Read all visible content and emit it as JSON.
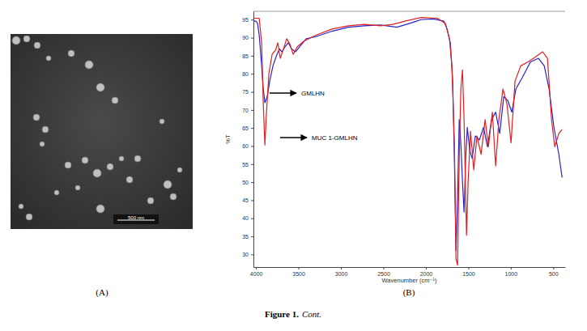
{
  "chart_data": {
    "type": "line",
    "xlabel": "Wavenumber (cm⁻¹)",
    "ylabel": "%T",
    "xlim": [
      4030,
      360
    ],
    "ylim": [
      26.5,
      97.3
    ],
    "xticks": [
      4000,
      3500,
      3000,
      2500,
      2000,
      1500,
      1000,
      500
    ],
    "yticks": [
      30,
      35,
      40,
      45,
      50,
      55,
      60,
      65,
      70,
      75,
      80,
      85,
      90,
      95
    ],
    "grid": false,
    "annotations": [
      "GMLHN",
      "MUC 1-GMLHN"
    ],
    "series": [
      {
        "name": "GMLHN",
        "color": "#2424cc",
        "x": [
          4029,
          4000,
          3981,
          3962,
          3933,
          3914,
          3895,
          3867,
          3838,
          3800,
          3762,
          3724,
          3695,
          3657,
          3619,
          3581,
          3533,
          3485,
          3409,
          3295,
          3104,
          2913,
          2723,
          2532,
          2341,
          2198,
          2055,
          1912,
          1788,
          1750,
          1712,
          1684,
          1664,
          1645,
          1626,
          1607,
          1588,
          1569,
          1550,
          1531,
          1512,
          1483,
          1455,
          1417,
          1369,
          1321,
          1274,
          1226,
          1178,
          1130,
          1083,
          1035,
          988,
          940,
          864,
          768,
          673,
          606,
          549,
          492,
          434,
          396
        ],
        "values": [
          94.6,
          94.6,
          93.9,
          90.7,
          82.2,
          75.8,
          72.0,
          73.7,
          78.0,
          82.2,
          84.8,
          86.9,
          86.1,
          87.5,
          88.6,
          86.9,
          86.1,
          87.5,
          89.7,
          90.3,
          91.8,
          92.9,
          93.3,
          93.5,
          92.9,
          93.9,
          95.0,
          95.2,
          94.6,
          92.4,
          88.6,
          78.0,
          56.6,
          31.1,
          46.0,
          67.3,
          60.9,
          50.3,
          41.7,
          56.6,
          65.2,
          58.8,
          56.6,
          62.8,
          61.7,
          65.2,
          59.8,
          67.3,
          69.4,
          63.5,
          73.7,
          72.6,
          69.4,
          75.8,
          79.0,
          83.3,
          84.3,
          82.2,
          75.8,
          65.2,
          57.7,
          51.3
        ]
      },
      {
        "name": "MUC 1-GMLHN",
        "color": "#e02020",
        "x": [
          4029,
          3962,
          3933,
          3914,
          3895,
          3876,
          3848,
          3810,
          3771,
          3743,
          3714,
          3676,
          3638,
          3600,
          3562,
          3514,
          3438,
          3295,
          3104,
          2913,
          2723,
          2532,
          2389,
          2246,
          2055,
          1865,
          1769,
          1722,
          1693,
          1664,
          1645,
          1626,
          1607,
          1588,
          1569,
          1550,
          1521,
          1502,
          1474,
          1436,
          1398,
          1350,
          1302,
          1264,
          1217,
          1178,
          1140,
          1092,
          1045,
          997,
          950,
          883,
          797,
          701,
          625,
          568,
          520,
          482,
          434,
          396
        ],
        "values": [
          95.4,
          95.4,
          88.6,
          71.6,
          60.3,
          69.4,
          80.1,
          85.4,
          86.5,
          88.6,
          84.3,
          86.9,
          89.7,
          88.2,
          85.4,
          87.5,
          89.0,
          90.7,
          92.4,
          93.3,
          93.7,
          93.3,
          93.7,
          94.6,
          95.6,
          95.4,
          93.9,
          89.7,
          82.2,
          60.9,
          28.8,
          27.0,
          56.6,
          75.8,
          81.1,
          67.3,
          35.3,
          50.3,
          64.1,
          53.4,
          62.8,
          57.7,
          67.3,
          59.8,
          69.4,
          54.5,
          67.3,
          75.8,
          71.6,
          60.9,
          78.0,
          82.2,
          83.3,
          84.8,
          86.1,
          84.3,
          67.3,
          59.8,
          63.5,
          64.6
        ]
      }
    ]
  },
  "panels": [
    {
      "label": "(A)",
      "scale_bar": "500 nm"
    },
    {
      "label": "(B)"
    }
  ],
  "caption": {
    "label": "Figure 1.",
    "text": "Cont."
  }
}
